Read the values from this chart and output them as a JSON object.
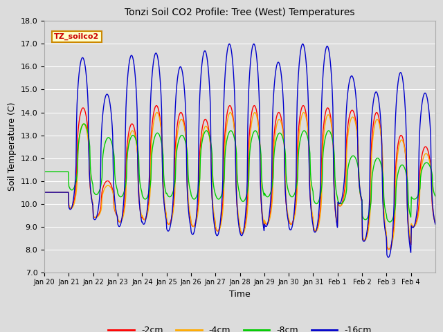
{
  "title": "Tonzi Soil CO2 Profile: Tree (West) Temperatures",
  "xlabel": "Time",
  "ylabel": "Soil Temperature (C)",
  "ylim": [
    7.0,
    18.0
  ],
  "yticks": [
    7.0,
    8.0,
    9.0,
    10.0,
    11.0,
    12.0,
    13.0,
    14.0,
    15.0,
    16.0,
    17.0,
    18.0
  ],
  "background_color": "#dcdcdc",
  "plot_bg_color": "#dcdcdc",
  "legend_label": "TZ_soilco2",
  "legend_box_color": "#ffffcc",
  "legend_box_edge": "#cc8800",
  "series_colors": [
    "#ff0000",
    "#ffaa00",
    "#00cc00",
    "#0000cc"
  ],
  "series_labels": [
    "-2cm",
    "-4cm",
    "-8cm",
    "-16cm"
  ],
  "xtick_labels": [
    "Jan 20",
    "Jan 21",
    "Jan 22",
    "Jan 23",
    "Jan 24",
    "Jan 25",
    "Jan 26",
    "Jan 27",
    "Jan 28",
    "Jan 29",
    "Jan 30",
    "Jan 31",
    "Feb 1",
    "Feb 2",
    "Feb 3",
    "Feb 4"
  ],
  "n_days": 16,
  "day_mins_2cm": [
    10.5,
    9.8,
    9.4,
    9.2,
    9.3,
    9.1,
    9.0,
    8.8,
    8.7,
    9.1,
    9.1,
    8.8,
    9.9,
    8.4,
    8.0,
    9.0
  ],
  "day_maxs_2cm": [
    10.5,
    14.2,
    11.0,
    13.5,
    14.3,
    14.0,
    13.7,
    14.3,
    14.3,
    14.0,
    14.3,
    14.2,
    14.1,
    14.0,
    13.0,
    12.5
  ],
  "day_mins_4cm": [
    10.5,
    9.8,
    9.4,
    9.2,
    9.3,
    9.1,
    9.0,
    8.8,
    8.7,
    9.1,
    9.1,
    8.8,
    9.9,
    8.4,
    8.0,
    9.0
  ],
  "day_maxs_4cm": [
    10.5,
    13.5,
    10.8,
    13.2,
    14.0,
    13.7,
    13.4,
    14.0,
    14.0,
    13.7,
    14.0,
    13.9,
    13.8,
    13.7,
    12.8,
    12.2
  ],
  "day_mins_8cm": [
    11.4,
    10.6,
    10.4,
    10.3,
    10.2,
    10.3,
    10.2,
    10.2,
    10.1,
    10.3,
    10.3,
    10.0,
    10.0,
    9.3,
    9.2,
    10.2
  ],
  "day_maxs_8cm": [
    11.4,
    13.5,
    12.9,
    13.0,
    13.1,
    13.0,
    13.2,
    13.2,
    13.2,
    13.1,
    13.2,
    13.2,
    12.1,
    12.0,
    11.7,
    11.8
  ],
  "day_mins_16cm": [
    10.5,
    9.75,
    9.3,
    9.0,
    9.1,
    8.8,
    8.65,
    8.6,
    8.6,
    9.0,
    8.85,
    8.75,
    10.0,
    8.35,
    7.65,
    8.95
  ],
  "day_maxs_16cm": [
    10.5,
    16.4,
    14.8,
    16.5,
    16.6,
    16.0,
    16.7,
    17.0,
    17.0,
    16.2,
    17.0,
    16.9,
    15.6,
    14.9,
    15.75,
    14.85
  ]
}
